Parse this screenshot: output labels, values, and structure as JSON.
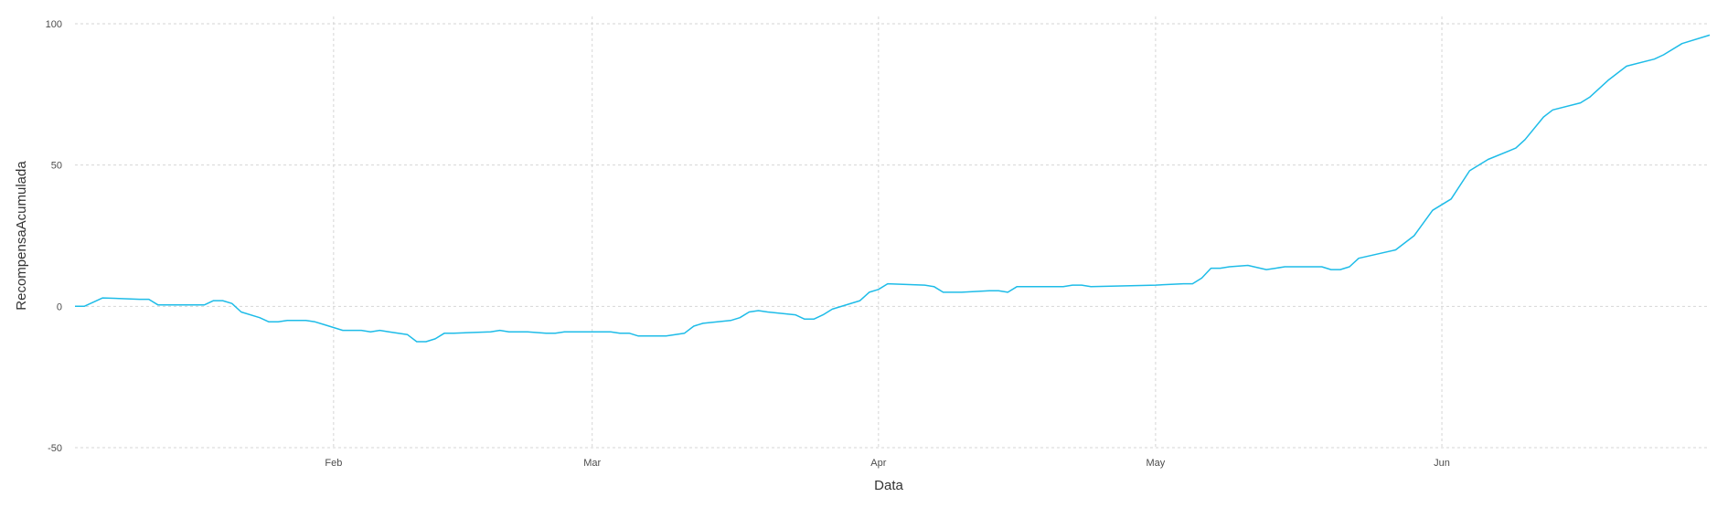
{
  "chart_data": {
    "type": "line",
    "title": "",
    "xlabel": "Data",
    "ylabel": "RecompensaAcumulada",
    "grid": true,
    "legend": "none",
    "color": "#1ebce8",
    "xlim": [
      "2019-01-04",
      "2019-06-30"
    ],
    "ylim": [
      -50,
      100
    ],
    "x_ticks": [
      {
        "date": "2019-02-01",
        "label": "Feb"
      },
      {
        "date": "2019-03-01",
        "label": "Mar"
      },
      {
        "date": "2019-04-01",
        "label": "Apr"
      },
      {
        "date": "2019-05-01",
        "label": "May"
      },
      {
        "date": "2019-06-01",
        "label": "Jun"
      }
    ],
    "y_ticks": [
      -50,
      0,
      50,
      100
    ],
    "series": [
      {
        "points": [
          [
            "2019-01-04",
            0
          ],
          [
            "2019-01-05",
            0
          ],
          [
            "2019-01-07",
            3
          ],
          [
            "2019-01-11",
            2.5
          ],
          [
            "2019-01-12",
            2.5
          ],
          [
            "2019-01-13",
            0.5
          ],
          [
            "2019-01-18",
            0.5
          ],
          [
            "2019-01-19",
            2
          ],
          [
            "2019-01-20",
            2
          ],
          [
            "2019-01-21",
            1
          ],
          [
            "2019-01-22",
            -2
          ],
          [
            "2019-01-24",
            -4
          ],
          [
            "2019-01-25",
            -5.5
          ],
          [
            "2019-01-26",
            -5.5
          ],
          [
            "2019-01-27",
            -5
          ],
          [
            "2019-01-29",
            -5
          ],
          [
            "2019-01-30",
            -5.5
          ],
          [
            "2019-01-31",
            -6.5
          ],
          [
            "2019-02-02",
            -8.5
          ],
          [
            "2019-02-04",
            -8.5
          ],
          [
            "2019-02-05",
            -9
          ],
          [
            "2019-02-06",
            -8.5
          ],
          [
            "2019-02-07",
            -9
          ],
          [
            "2019-02-09",
            -10
          ],
          [
            "2019-02-10",
            -12.5
          ],
          [
            "2019-02-11",
            -12.5
          ],
          [
            "2019-02-12",
            -11.5
          ],
          [
            "2019-02-13",
            -9.5
          ],
          [
            "2019-02-14",
            -9.5
          ],
          [
            "2019-02-18",
            -9
          ],
          [
            "2019-02-19",
            -8.5
          ],
          [
            "2019-02-20",
            -9
          ],
          [
            "2019-02-22",
            -9
          ],
          [
            "2019-02-24",
            -9.5
          ],
          [
            "2019-02-25",
            -9.5
          ],
          [
            "2019-02-26",
            -9
          ],
          [
            "2019-02-27",
            -9
          ],
          [
            "2019-03-01",
            -9
          ],
          [
            "2019-03-03",
            -9
          ],
          [
            "2019-03-04",
            -9.5
          ],
          [
            "2019-03-05",
            -9.5
          ],
          [
            "2019-03-06",
            -10.5
          ],
          [
            "2019-03-08",
            -10.5
          ],
          [
            "2019-03-09",
            -10.5
          ],
          [
            "2019-03-10",
            -10
          ],
          [
            "2019-03-11",
            -9.5
          ],
          [
            "2019-03-12",
            -7
          ],
          [
            "2019-03-13",
            -6
          ],
          [
            "2019-03-16",
            -5
          ],
          [
            "2019-03-17",
            -4
          ],
          [
            "2019-03-18",
            -2
          ],
          [
            "2019-03-19",
            -1.5
          ],
          [
            "2019-03-20",
            -2
          ],
          [
            "2019-03-23",
            -3
          ],
          [
            "2019-03-24",
            -4.5
          ],
          [
            "2019-03-25",
            -4.5
          ],
          [
            "2019-03-26",
            -3
          ],
          [
            "2019-03-27",
            -1
          ],
          [
            "2019-03-30",
            2
          ],
          [
            "2019-03-31",
            5
          ],
          [
            "2019-04-01",
            6
          ],
          [
            "2019-04-02",
            8
          ],
          [
            "2019-04-06",
            7.5
          ],
          [
            "2019-04-07",
            7
          ],
          [
            "2019-04-08",
            5
          ],
          [
            "2019-04-10",
            5
          ],
          [
            "2019-04-13",
            5.5
          ],
          [
            "2019-04-14",
            5.5
          ],
          [
            "2019-04-15",
            5
          ],
          [
            "2019-04-16",
            7
          ],
          [
            "2019-04-21",
            7
          ],
          [
            "2019-04-22",
            7.5
          ],
          [
            "2019-04-23",
            7.5
          ],
          [
            "2019-04-24",
            7
          ],
          [
            "2019-05-01",
            7.5
          ],
          [
            "2019-05-04",
            8
          ],
          [
            "2019-05-05",
            8
          ],
          [
            "2019-05-06",
            10
          ],
          [
            "2019-05-07",
            13.5
          ],
          [
            "2019-05-08",
            13.5
          ],
          [
            "2019-05-09",
            14
          ],
          [
            "2019-05-11",
            14.5
          ],
          [
            "2019-05-13",
            13
          ],
          [
            "2019-05-14",
            13.5
          ],
          [
            "2019-05-15",
            14
          ],
          [
            "2019-05-19",
            14
          ],
          [
            "2019-05-20",
            13
          ],
          [
            "2019-05-21",
            13
          ],
          [
            "2019-05-22",
            14
          ],
          [
            "2019-05-23",
            17
          ],
          [
            "2019-05-27",
            20
          ],
          [
            "2019-05-29",
            25
          ],
          [
            "2019-05-31",
            34
          ],
          [
            "2019-06-02",
            38
          ],
          [
            "2019-06-04",
            48
          ],
          [
            "2019-06-06",
            52
          ],
          [
            "2019-06-09",
            56
          ],
          [
            "2019-06-10",
            59
          ],
          [
            "2019-06-12",
            67
          ],
          [
            "2019-06-13",
            69.5
          ],
          [
            "2019-06-16",
            72
          ],
          [
            "2019-06-17",
            74
          ],
          [
            "2019-06-19",
            80
          ],
          [
            "2019-06-21",
            85
          ],
          [
            "2019-06-24",
            87.5
          ],
          [
            "2019-06-25",
            89
          ],
          [
            "2019-06-27",
            93
          ],
          [
            "2019-06-30",
            96
          ]
        ]
      }
    ]
  }
}
